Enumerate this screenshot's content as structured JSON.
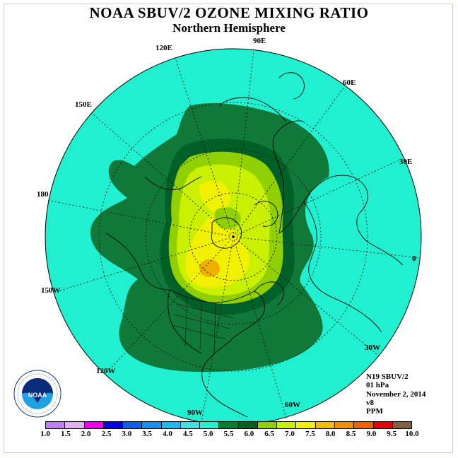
{
  "title": "NOAA SBUV/2 OZONE MIXING RATIO",
  "subtitle": "Northern Hemisphere",
  "longitude_labels": [
    "90E",
    "60E",
    "30E",
    "0",
    "30W",
    "60W",
    "90W",
    "120W",
    "150W",
    "180",
    "150E",
    "120E"
  ],
  "info": {
    "instrument": "N19 SBUV/2",
    "level": "01 hPa",
    "date": "November 2, 2014",
    "version": "v8",
    "units": "PPM"
  },
  "colorbar": {
    "ticks": [
      "1.0",
      "1.5",
      "2.0",
      "2.5",
      "3.0",
      "3.5",
      "4.0",
      "4.5",
      "5.0",
      "5.5",
      "6.0",
      "6.5",
      "7.0",
      "7.5",
      "8.0",
      "8.5",
      "9.0",
      "9.5",
      "10.0"
    ],
    "colors": [
      "#c080f0",
      "#e0b0f0",
      "#f000f0",
      "#0000e8",
      "#1060f0",
      "#1890f0",
      "#20b8f0",
      "#40e0e0",
      "#20f0d0",
      "#008030",
      "#006020",
      "#90d000",
      "#c8f000",
      "#f0f000",
      "#f0c000",
      "#f09000",
      "#f06000",
      "#e80000",
      "#806040"
    ]
  },
  "map_layers": {
    "background": "#20f0d0",
    "band_5_5": "#107838",
    "band_6_0": "#006028",
    "band_6_5": "#90d000",
    "band_7_0": "#c8f000",
    "band_7_5": "#f0f000",
    "band_8_0": "#f0b000"
  },
  "logo_text": "NOAA"
}
